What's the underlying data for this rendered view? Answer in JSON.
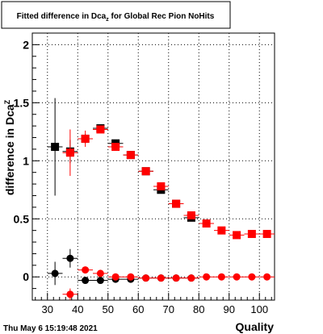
{
  "chart_data": {
    "type": "scatter",
    "title": "Fitted difference in Dca",
    "title_sub": "z",
    "title_suffix": " for Global Rec Pion NoHits",
    "xlabel": "Quality",
    "ylabel": "difference in Dca",
    "ylabel_sub": "Z",
    "xlim": [
      25,
      105
    ],
    "ylim": [
      -0.2,
      2.1
    ],
    "x_ticks": [
      30,
      40,
      50,
      60,
      70,
      80,
      90,
      100
    ],
    "y_ticks": [
      0,
      0.5,
      1,
      1.5,
      2
    ],
    "y_tick_labels": [
      "0",
      "0.5",
      "1",
      "1.5",
      "2"
    ],
    "grid": true,
    "x_half_width": 2.5,
    "series": [
      {
        "marker": "square",
        "color": "#000000",
        "points": [
          {
            "x": 32.5,
            "y": 1.12,
            "yerr": 0.42
          },
          {
            "x": 37.5,
            "y": 1.08,
            "yerr": 0.1
          },
          {
            "x": 42.5,
            "y": 1.19,
            "yerr": 0.04
          },
          {
            "x": 47.5,
            "y": 1.28,
            "yerr": 0.03
          },
          {
            "x": 52.5,
            "y": 1.15,
            "yerr": 0.02
          },
          {
            "x": 57.5,
            "y": 1.05,
            "yerr": 0.02
          },
          {
            "x": 62.5,
            "y": 0.91,
            "yerr": 0.02
          },
          {
            "x": 67.5,
            "y": 0.75,
            "yerr": 0.02
          },
          {
            "x": 72.5,
            "y": 0.63,
            "yerr": 0.02
          },
          {
            "x": 77.5,
            "y": 0.51,
            "yerr": 0.02
          }
        ]
      },
      {
        "marker": "square",
        "color": "#ff0000",
        "points": [
          {
            "x": 37.5,
            "y": 1.07,
            "yerr": 0.2
          },
          {
            "x": 42.5,
            "y": 1.19,
            "yerr": 0.07
          },
          {
            "x": 47.5,
            "y": 1.27,
            "yerr": 0.03
          },
          {
            "x": 52.5,
            "y": 1.12,
            "yerr": 0.02
          },
          {
            "x": 57.5,
            "y": 1.05,
            "yerr": 0.02
          },
          {
            "x": 62.5,
            "y": 0.91,
            "yerr": 0.02
          },
          {
            "x": 67.5,
            "y": 0.78,
            "yerr": 0.02
          },
          {
            "x": 72.5,
            "y": 0.63,
            "yerr": 0.02
          },
          {
            "x": 77.5,
            "y": 0.53,
            "yerr": 0.02
          },
          {
            "x": 82.5,
            "y": 0.46,
            "yerr": 0.02
          },
          {
            "x": 87.5,
            "y": 0.4,
            "yerr": 0.01
          },
          {
            "x": 92.5,
            "y": 0.36,
            "yerr": 0.01
          },
          {
            "x": 97.5,
            "y": 0.37,
            "yerr": 0.01
          },
          {
            "x": 102.5,
            "y": 0.37,
            "yerr": 0.01
          }
        ]
      },
      {
        "marker": "circle",
        "color": "#000000",
        "points": [
          {
            "x": 32.5,
            "y": 0.03,
            "yerr": 0.1
          },
          {
            "x": 37.5,
            "y": 0.16,
            "yerr": 0.08
          },
          {
            "x": 42.5,
            "y": -0.03,
            "yerr": 0.02
          },
          {
            "x": 47.5,
            "y": -0.03,
            "yerr": 0.015
          },
          {
            "x": 52.5,
            "y": -0.02,
            "yerr": 0.01
          },
          {
            "x": 57.5,
            "y": -0.02,
            "yerr": 0.01
          },
          {
            "x": 62.5,
            "y": -0.01,
            "yerr": 0.01
          },
          {
            "x": 67.5,
            "y": -0.01,
            "yerr": 0.01
          },
          {
            "x": 72.5,
            "y": -0.01,
            "yerr": 0.01
          },
          {
            "x": 77.5,
            "y": -0.01,
            "yerr": 0.01
          }
        ]
      },
      {
        "marker": "circle",
        "color": "#ff0000",
        "points": [
          {
            "x": 37.5,
            "y": -0.15,
            "yerr": 0.05
          },
          {
            "x": 42.5,
            "y": 0.06,
            "yerr": 0.02
          },
          {
            "x": 47.5,
            "y": 0.03,
            "yerr": 0.01
          },
          {
            "x": 52.5,
            "y": 0.0,
            "yerr": 0.01
          },
          {
            "x": 57.5,
            "y": 0.0,
            "yerr": 0.01
          },
          {
            "x": 62.5,
            "y": -0.01,
            "yerr": 0.01
          },
          {
            "x": 67.5,
            "y": -0.01,
            "yerr": 0.01
          },
          {
            "x": 72.5,
            "y": -0.01,
            "yerr": 0.01
          },
          {
            "x": 77.5,
            "y": -0.01,
            "yerr": 0.01
          },
          {
            "x": 82.5,
            "y": 0.0,
            "yerr": 0.005
          },
          {
            "x": 87.5,
            "y": 0.0,
            "yerr": 0.005
          },
          {
            "x": 92.5,
            "y": 0.0,
            "yerr": 0.005
          },
          {
            "x": 97.5,
            "y": 0.0,
            "yerr": 0.005
          },
          {
            "x": 102.5,
            "y": 0.0,
            "yerr": 0.005
          }
        ]
      }
    ]
  },
  "footer": {
    "timestamp": "Thu May  6 15:19:48 2021"
  }
}
